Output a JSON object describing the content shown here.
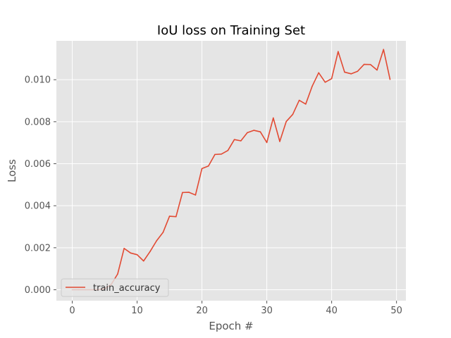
{
  "chart_data": {
    "type": "line",
    "title": "IoU loss on Training Set",
    "xlabel": "Epoch #",
    "ylabel": "Loss",
    "xlim": [
      -2.45,
      51.45
    ],
    "ylim": [
      -0.00052,
      0.01185
    ],
    "grid": true,
    "legend_position": "lower-left",
    "x_ticks": [
      0,
      10,
      20,
      30,
      40,
      50
    ],
    "x_tick_labels": [
      "0",
      "10",
      "20",
      "30",
      "40",
      "50"
    ],
    "y_ticks": [
      0.0,
      0.002,
      0.004,
      0.006,
      0.008,
      0.01
    ],
    "y_tick_labels": [
      "0.000",
      "0.002",
      "0.004",
      "0.006",
      "0.008",
      "0.010"
    ],
    "colors": {
      "background": "#e5e5e5",
      "grid": "#ffffff",
      "line": "#e24a33",
      "text": "#555555"
    },
    "series": [
      {
        "name": "train_accuracy",
        "x": [
          0,
          1,
          2,
          3,
          4,
          5,
          6,
          7,
          8,
          9,
          10,
          11,
          12,
          13,
          14,
          15,
          16,
          17,
          18,
          19,
          20,
          21,
          22,
          23,
          24,
          25,
          26,
          27,
          28,
          29,
          30,
          31,
          32,
          33,
          34,
          35,
          36,
          37,
          38,
          39,
          40,
          41,
          42,
          43,
          44,
          45,
          46,
          47,
          48,
          49
        ],
        "values": [
          0.0,
          0.0,
          0.0,
          0.0,
          0.0,
          5e-05,
          0.00025,
          0.00075,
          0.00197,
          0.00175,
          0.00167,
          0.00137,
          0.00182,
          0.00233,
          0.00273,
          0.0035,
          0.00348,
          0.00463,
          0.00464,
          0.00451,
          0.00577,
          0.00589,
          0.00644,
          0.00646,
          0.00663,
          0.00715,
          0.00709,
          0.00748,
          0.00759,
          0.00752,
          0.00701,
          0.00818,
          0.00706,
          0.00801,
          0.00835,
          0.00902,
          0.00884,
          0.00969,
          0.01033,
          0.00988,
          0.01005,
          0.01134,
          0.01036,
          0.01028,
          0.0104,
          0.01073,
          0.01072,
          0.01046,
          0.01144,
          0.01002
        ]
      }
    ]
  }
}
